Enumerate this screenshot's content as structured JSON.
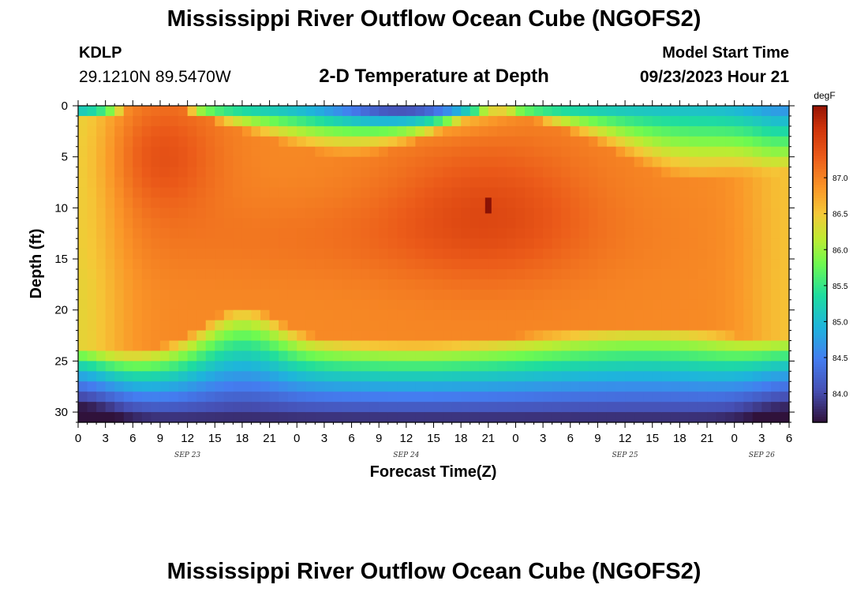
{
  "header": {
    "title": "Mississippi River Outflow Ocean Cube (NGOFS2)",
    "station_id": "KDLP",
    "station_coords": "29.1210N  89.5470W",
    "subtitle": "2-D Temperature at Depth",
    "start_label": "Model Start Time",
    "start_value": "09/23/2023 Hour 21"
  },
  "footer": {
    "title": "Mississippi River Outflow Ocean Cube (NGOFS2)"
  },
  "chart_data": {
    "type": "heatmap",
    "title": "2-D Temperature at Depth",
    "xlabel": "Forecast Time(Z)",
    "ylabel": "Depth (ft)",
    "colorbar_label": "degF",
    "colorbar_ticks": [
      "87.0",
      "86.5",
      "86.0",
      "85.5",
      "85.0",
      "84.5",
      "84.0"
    ],
    "colorbar_range": [
      83.6,
      88.0
    ],
    "x_range_hours": [
      0,
      78
    ],
    "x_tick_labels": [
      "0",
      "3",
      "6",
      "9",
      "12",
      "15",
      "18",
      "21",
      "0",
      "3",
      "6",
      "9",
      "12",
      "15",
      "18",
      "21",
      "0",
      "3",
      "6",
      "9",
      "12",
      "15",
      "18",
      "21",
      "0",
      "3",
      "6"
    ],
    "date_labels": [
      {
        "label": "SEP 23",
        "hour": 12
      },
      {
        "label": "SEP 24",
        "hour": 36
      },
      {
        "label": "SEP 25",
        "hour": 60
      },
      {
        "label": "SEP 26",
        "hour": 75
      }
    ],
    "y_range_ft": [
      0,
      31
    ],
    "y_tick_labels": [
      "0",
      "5",
      "10",
      "15",
      "20",
      "25",
      "30"
    ],
    "hot_spot": {
      "hour": 45,
      "depth_ft": 10.5,
      "value": 87.9
    },
    "features": [
      {
        "hour": 9,
        "depth_ft": 4.5,
        "value": 87.4,
        "desc": "warm core"
      },
      {
        "hour": 45,
        "depth_ft": 10,
        "value": 87.4,
        "desc": "warm core"
      },
      {
        "hour": 36,
        "depth_ft": 0.5,
        "value": 84.9,
        "desc": "cool surface"
      },
      {
        "hour": 70,
        "depth_ft": 3,
        "value": 85.0,
        "desc": "cool surface"
      },
      {
        "hour": 18,
        "depth_ft": 30.5,
        "value": 83.7,
        "desc": "cold bottom"
      }
    ]
  }
}
